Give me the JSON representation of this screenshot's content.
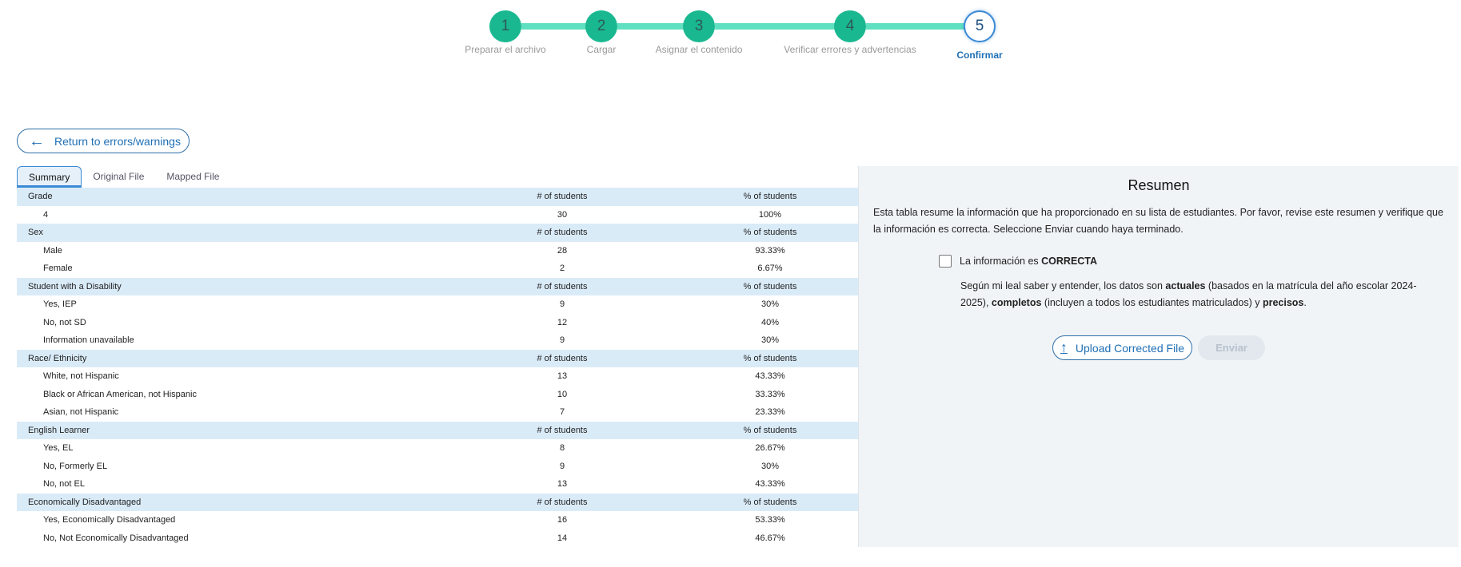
{
  "stepper": {
    "steps": [
      {
        "num": "1",
        "label": "Preparar el archivo"
      },
      {
        "num": "2",
        "label": "Cargar"
      },
      {
        "num": "3",
        "label": "Asignar el contenido"
      },
      {
        "num": "4",
        "label": "Verificar errores y advertencias"
      },
      {
        "num": "5",
        "label": "Confirmar"
      }
    ],
    "current": 5,
    "completed_color": "#1ab891",
    "active_color": "#3a8ad6"
  },
  "back_button": {
    "label": "Return to errors/warnings",
    "icon": "arrow-left-icon"
  },
  "tabs": [
    {
      "label": "Summary",
      "active": true
    },
    {
      "label": "Original File"
    },
    {
      "label": "Mapped File"
    }
  ],
  "table": {
    "groups": [
      {
        "title": "Grade",
        "count_header": "# of students",
        "pct_header": "% of students",
        "rows": [
          [
            "4",
            "30",
            "100%"
          ]
        ]
      },
      {
        "title": "Sex",
        "count_header": "# of students",
        "pct_header": "% of students",
        "rows": [
          [
            "Male",
            "28",
            "93.33%"
          ],
          [
            "Female",
            "2",
            "6.67%"
          ]
        ]
      },
      {
        "title": "Student with a Disability",
        "count_header": "# of students",
        "pct_header": "% of students",
        "rows": [
          [
            "Yes, IEP",
            "9",
            "30%"
          ],
          [
            "No, not SD",
            "12",
            "40%"
          ],
          [
            "Information unavailable",
            "9",
            "30%"
          ]
        ]
      },
      {
        "title": "Race/ Ethnicity",
        "count_header": "# of students",
        "pct_header": "% of students",
        "rows": [
          [
            "White, not Hispanic",
            "13",
            "43.33%"
          ],
          [
            "Black or African American, not Hispanic",
            "10",
            "33.33%"
          ],
          [
            "Asian, not Hispanic",
            "7",
            "23.33%"
          ]
        ]
      },
      {
        "title": "English Learner",
        "count_header": "# of students",
        "pct_header": "% of students",
        "rows": [
          [
            "Yes, EL",
            "8",
            "26.67%"
          ],
          [
            "No, Formerly EL",
            "9",
            "30%"
          ],
          [
            "No, not EL",
            "13",
            "43.33%"
          ]
        ]
      },
      {
        "title": "Economically Disadvantaged",
        "count_header": "# of students",
        "pct_header": "% of students",
        "rows": [
          [
            "Yes, Economically Disadvantaged",
            "16",
            "53.33%"
          ],
          [
            "No, Not Economically Disadvantaged",
            "14",
            "46.67%"
          ]
        ]
      }
    ]
  },
  "summary_panel": {
    "title": "Resumen",
    "description": "Esta tabla resume la información que ha proporcionado en su lista de estudiantes. Por favor, revise este resumen y verifique que la información es correcta. Seleccione Enviar cuando haya terminado.",
    "checkbox_label_prefix": "La información es ",
    "checkbox_label_bold": "CORRECTA",
    "checkbox_checked": false,
    "confirm_1": "Según mi leal saber y entender, los datos son ",
    "confirm_b1": "actuales",
    "confirm_2": " (basados en la matrícula del año escolar 2024-2025), ",
    "confirm_b2": "completos",
    "confirm_3": " (incluyen a todos los estudiantes matriculados) y ",
    "confirm_b3": "precisos",
    "confirm_4": ".",
    "upload_label": "Upload Corrected File",
    "upload_icon": "upload-icon",
    "submit_label": "Enviar",
    "submit_disabled": true
  }
}
